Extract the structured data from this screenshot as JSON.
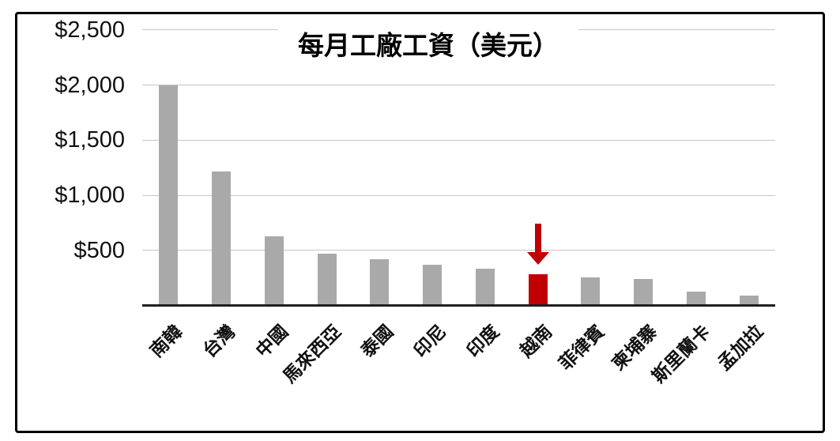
{
  "frame": {
    "border_color": "#000000",
    "background": "#ffffff"
  },
  "chart_data": {
    "type": "bar",
    "title": "每月工廠工資（美元）",
    "categories": [
      "南韓",
      "台灣",
      "中國",
      "馬來西亞",
      "泰國",
      "印尼",
      "印度",
      "越南",
      "菲律賓",
      "柬埔寨",
      "斯里蘭卡",
      "孟加拉"
    ],
    "values": [
      2000,
      1220,
      630,
      470,
      420,
      375,
      340,
      290,
      260,
      245,
      130,
      95
    ],
    "xlabel": "",
    "ylabel": "",
    "ylim": [
      0,
      2500
    ],
    "grid": true,
    "legend": "none",
    "y_ticks": [
      {
        "value": 2500,
        "label": "$2,500"
      },
      {
        "value": 2000,
        "label": "$2,000"
      },
      {
        "value": 1500,
        "label": "$1,500"
      },
      {
        "value": 1000,
        "label": "$1,000"
      },
      {
        "value": 500,
        "label": "$500"
      }
    ],
    "bar_color": "#a9a9a9",
    "gridline_color": "#c6c6c6",
    "axis_line_color": "#1f1f1f",
    "highlight": {
      "index": 7,
      "category": "越南",
      "color": "#c00000",
      "annotation": "arrow-down"
    }
  }
}
